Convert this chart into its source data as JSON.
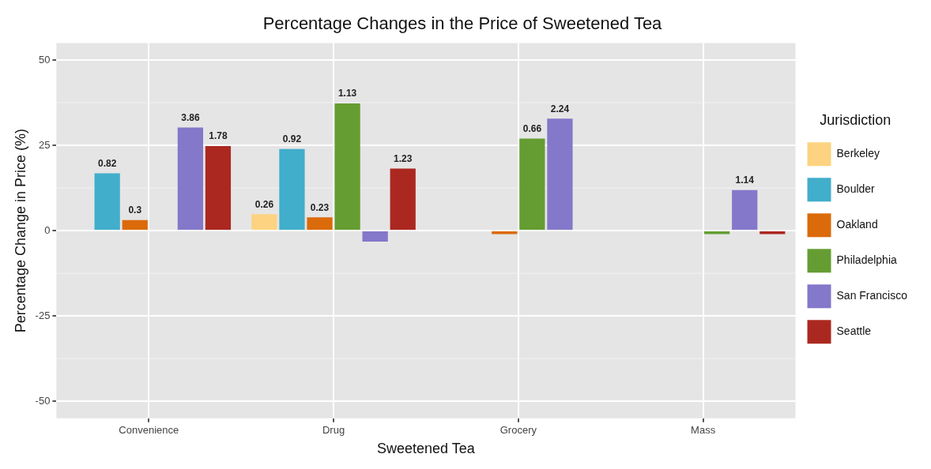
{
  "chart_data": {
    "type": "bar",
    "title": "Percentage Changes in the Price of Sweetened Tea",
    "xlabel": "Sweetened Tea",
    "ylabel": "Percentage Change in Price (%)",
    "legend_title": "Jurisdiction",
    "categories": [
      "Convenience",
      "Drug",
      "Grocery",
      "Mass"
    ],
    "series": [
      {
        "name": "Berkeley",
        "color": "#fdd381",
        "values": [
          null,
          4.8,
          null,
          null
        ]
      },
      {
        "name": "Boulder",
        "color": "#41aecb",
        "values": [
          16.8,
          23.9,
          null,
          null
        ]
      },
      {
        "name": "Oakland",
        "color": "#db6a0a",
        "values": [
          3.1,
          3.9,
          -1.0,
          null
        ]
      },
      {
        "name": "Philadelphia",
        "color": "#659d32",
        "values": [
          null,
          37.3,
          27.0,
          -1.0
        ]
      },
      {
        "name": "San Francisco",
        "color": "#8378c9",
        "values": [
          30.2,
          -3.2,
          32.8,
          11.9
        ]
      },
      {
        "name": "Seattle",
        "color": "#ab2820",
        "values": [
          24.8,
          18.2,
          null,
          -1.0
        ]
      }
    ],
    "annotations": [
      "0.82",
      "0.3",
      "3.86",
      "1.78",
      "0.26",
      "0.92",
      "0.23",
      "1.13",
      "1.23",
      "0.66",
      "2.24",
      "1.14"
    ],
    "ylim": [
      -55,
      55
    ],
    "yticks": [
      -50,
      -25,
      0,
      25,
      50
    ],
    "grid": true,
    "legend": "right"
  }
}
